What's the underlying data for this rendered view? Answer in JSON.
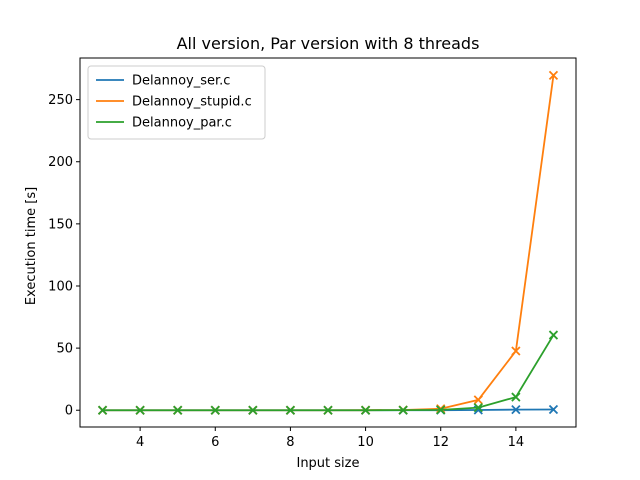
{
  "chart_data": {
    "type": "line",
    "title": "All version, Par version with 8 threads",
    "xlabel": "Input size",
    "ylabel": "Execution time [s]",
    "xlim": [
      2.4,
      15.6
    ],
    "ylim": [
      -13.5,
      283.5
    ],
    "xticks": [
      4,
      6,
      8,
      10,
      12,
      14
    ],
    "yticks": [
      0,
      50,
      100,
      150,
      200,
      250
    ],
    "grid": false,
    "legend": "top-left",
    "marker": "x",
    "x": [
      3,
      4,
      5,
      6,
      7,
      8,
      9,
      10,
      11,
      12,
      13,
      14,
      15
    ],
    "series": [
      {
        "name": "Delannoy_ser.c",
        "color": "#1f77b4",
        "values": [
          0,
          0,
          0,
          0,
          0,
          0,
          0,
          0,
          0,
          0.05,
          0.2,
          0.5,
          0.6
        ]
      },
      {
        "name": "Delannoy_stupid.c",
        "color": "#ff7f0e",
        "values": [
          0,
          0,
          0,
          0,
          0,
          0,
          0,
          0.05,
          0.2,
          1.2,
          8.3,
          47.7,
          269.5
        ]
      },
      {
        "name": "Delannoy_par.c",
        "color": "#2ca02c",
        "values": [
          0,
          0,
          0,
          0,
          0,
          0,
          0,
          0,
          0.1,
          0.3,
          2.1,
          10.6,
          60.5
        ]
      }
    ]
  }
}
